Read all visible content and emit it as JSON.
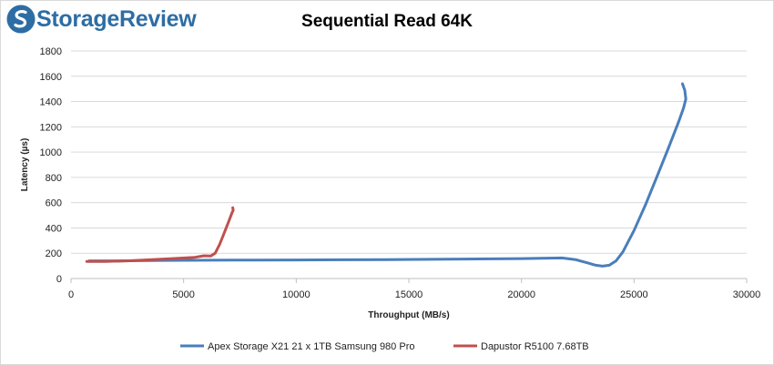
{
  "logo": {
    "text": "StorageReview"
  },
  "chart_data": {
    "type": "line",
    "title": "Sequential Read 64K",
    "xlabel": "Throughput (MB/s)",
    "ylabel": "Latency (µs)",
    "xlim": [
      0,
      30000
    ],
    "ylim": [
      0,
      1800
    ],
    "xticks": [
      0,
      5000,
      10000,
      15000,
      20000,
      25000,
      30000
    ],
    "yticks": [
      0,
      200,
      400,
      600,
      800,
      1000,
      1200,
      1400,
      1600,
      1800
    ],
    "grid": "horizontal",
    "legend_position": "bottom",
    "series": [
      {
        "name": "Apex Storage X21 21 x 1TB Samsung 980 Pro",
        "color": "#4a7ebb",
        "x": [
          800,
          2000,
          4000,
          6000,
          8000,
          10000,
          12000,
          14000,
          16000,
          18000,
          20000,
          21800,
          22400,
          22900,
          23300,
          23600,
          23900,
          24200,
          24500,
          25000,
          25500,
          26000,
          26500,
          27000,
          27200,
          27300,
          27250,
          27150
        ],
        "y": [
          140,
          140,
          143,
          145,
          146,
          147,
          148,
          150,
          152,
          155,
          158,
          163,
          150,
          125,
          105,
          98,
          105,
          140,
          210,
          380,
          580,
          800,
          1020,
          1250,
          1350,
          1420,
          1490,
          1540
        ]
      },
      {
        "name": "Dapustor R5100 7.68TB",
        "color": "#c0504d",
        "x": [
          700,
          1500,
          2500,
          3500,
          4500,
          5500,
          5900,
          6200,
          6400,
          6600,
          6800,
          7000,
          7150,
          7200,
          7180
        ],
        "y": [
          135,
          135,
          140,
          148,
          158,
          168,
          180,
          178,
          200,
          270,
          360,
          450,
          520,
          540,
          560
        ]
      }
    ]
  }
}
